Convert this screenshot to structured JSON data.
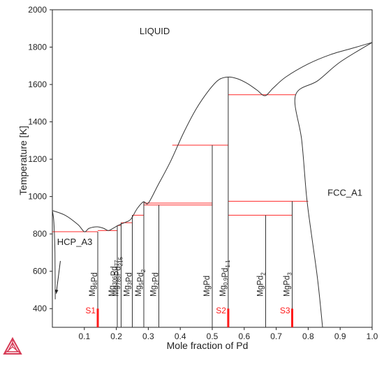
{
  "chart_data": {
    "type": "line",
    "title": "",
    "xlabel": "Mole fraction of Pd",
    "ylabel": "Temperature [K]",
    "xlim": [
      0.0,
      1.0
    ],
    "ylim": [
      300,
      2000
    ],
    "x_ticks": [
      0.1,
      0.2,
      0.3,
      0.4,
      0.5,
      0.6,
      0.7,
      0.8,
      0.9,
      1.0
    ],
    "x_tick_labels": [
      "0.1",
      "0.2",
      "0.3",
      "0.4",
      "0.5",
      "0.6",
      "0.7",
      "0.8",
      "0.9",
      "1.0"
    ],
    "y_ticks": [
      400,
      600,
      800,
      1000,
      1200,
      1400,
      1600,
      1800,
      2000
    ],
    "y_tick_labels": [
      "400",
      "600",
      "800",
      "1000",
      "1200",
      "1400",
      "1600",
      "1800",
      "2000"
    ],
    "grid": false,
    "regions": [
      {
        "label": "LIQUID",
        "x": 0.32,
        "T": 1870
      },
      {
        "label": "FCC_A1",
        "x": 0.915,
        "T": 1005
      },
      {
        "label": "HCP_A3",
        "x": 0.07,
        "T": 740
      }
    ],
    "liquidus": [
      [
        0.0,
        925
      ],
      [
        0.04,
        900
      ],
      [
        0.08,
        850
      ],
      [
        0.1,
        812
      ],
      [
        0.115,
        830
      ],
      [
        0.14,
        838
      ],
      [
        0.16,
        830
      ],
      [
        0.175,
        818
      ],
      [
        0.19,
        830
      ],
      [
        0.205,
        845
      ],
      [
        0.225,
        860
      ],
      [
        0.245,
        878
      ],
      [
        0.265,
        935
      ],
      [
        0.285,
        972
      ],
      [
        0.3,
        965
      ],
      [
        0.33,
        1060
      ],
      [
        0.37,
        1190
      ],
      [
        0.41,
        1340
      ],
      [
        0.45,
        1470
      ],
      [
        0.49,
        1570
      ],
      [
        0.52,
        1625
      ],
      [
        0.55,
        1640
      ],
      [
        0.58,
        1630
      ],
      [
        0.61,
        1605
      ],
      [
        0.64,
        1570
      ],
      [
        0.665,
        1540
      ],
      [
        0.69,
        1580
      ],
      [
        0.73,
        1640
      ],
      [
        0.8,
        1710
      ],
      [
        0.87,
        1760
      ],
      [
        0.94,
        1795
      ],
      [
        1.0,
        1825
      ]
    ],
    "fcc_boundary": [
      [
        1.0,
        1825
      ],
      [
        0.9,
        1720
      ],
      [
        0.83,
        1620
      ],
      [
        0.76,
        1540
      ],
      [
        0.78,
        1300
      ],
      [
        0.795,
        1000
      ],
      [
        0.81,
        800
      ],
      [
        0.83,
        550
      ],
      [
        0.845,
        300
      ]
    ],
    "hcp_solvus": [
      [
        0.0,
        925
      ],
      [
        0.004,
        880
      ],
      [
        0.006,
        820
      ],
      [
        0.008,
        700
      ],
      [
        0.009,
        450
      ]
    ],
    "hcp_arrow": {
      "from": [
        0.025,
        655
      ],
      "to": [
        0.012,
        480
      ]
    },
    "invariants": [
      {
        "T": 812,
        "x1": 0.0,
        "x2": 0.142
      },
      {
        "T": 818,
        "x1": 0.142,
        "x2": 0.203
      },
      {
        "T": 845,
        "x1": 0.203,
        "x2": 0.215
      },
      {
        "T": 860,
        "x1": 0.215,
        "x2": 0.25
      },
      {
        "T": 900,
        "x1": 0.25,
        "x2": 0.286
      },
      {
        "T": 955,
        "x1": 0.286,
        "x2": 0.5
      },
      {
        "T": 965,
        "x1": 0.286,
        "x2": 0.5
      },
      {
        "T": 1275,
        "x1": 0.375,
        "x2": 0.55
      },
      {
        "T": 1545,
        "x1": 0.55,
        "x2": 0.76
      },
      {
        "T": 975,
        "x1": 0.55,
        "x2": 0.8
      },
      {
        "T": 900,
        "x1": 0.55,
        "x2": 0.75
      }
    ],
    "compounds": [
      {
        "x": 0.142,
        "Ttop": 812,
        "label": [
          "Mg",
          "6",
          "Pd",
          ""
        ]
      },
      {
        "x": 0.203,
        "Ttop": 845,
        "label": [
          "Mg",
          "306",
          "Pd",
          "77"
        ]
      },
      {
        "x": 0.215,
        "Ttop": 860,
        "label": [
          "Mg",
          "785",
          "Pd",
          "215"
        ]
      },
      {
        "x": 0.25,
        "Ttop": 900,
        "label": [
          "Mg",
          "3",
          "Pd",
          ""
        ]
      },
      {
        "x": 0.286,
        "Ttop": 972,
        "label": [
          "Mg",
          "5",
          "Pd",
          "2"
        ]
      },
      {
        "x": 0.333,
        "Ttop": 955,
        "label": [
          "Mg",
          "2",
          "Pd",
          ""
        ]
      },
      {
        "x": 0.5,
        "Ttop": 1275,
        "label": [
          "MgPd",
          "",
          "",
          ""
        ]
      },
      {
        "x": 0.55,
        "Ttop": 1640,
        "label": [
          "Mg",
          "0.9",
          "Pd",
          "1.1"
        ]
      },
      {
        "x": 0.667,
        "Ttop": 900,
        "label": [
          "MgPd",
          "2",
          "",
          ""
        ]
      },
      {
        "x": 0.75,
        "Ttop": 975,
        "label": [
          "MgPd",
          "3",
          "",
          ""
        ]
      }
    ],
    "samples": [
      {
        "label": "S1",
        "x": 0.142
      },
      {
        "label": "S2",
        "x": 0.55
      },
      {
        "label": "S3",
        "x": 0.75
      }
    ],
    "colors": {
      "phase_line": "#333333",
      "invariant": "#ff2a2a",
      "sample": "#ff1a1a",
      "logo": "#d63a55"
    }
  }
}
